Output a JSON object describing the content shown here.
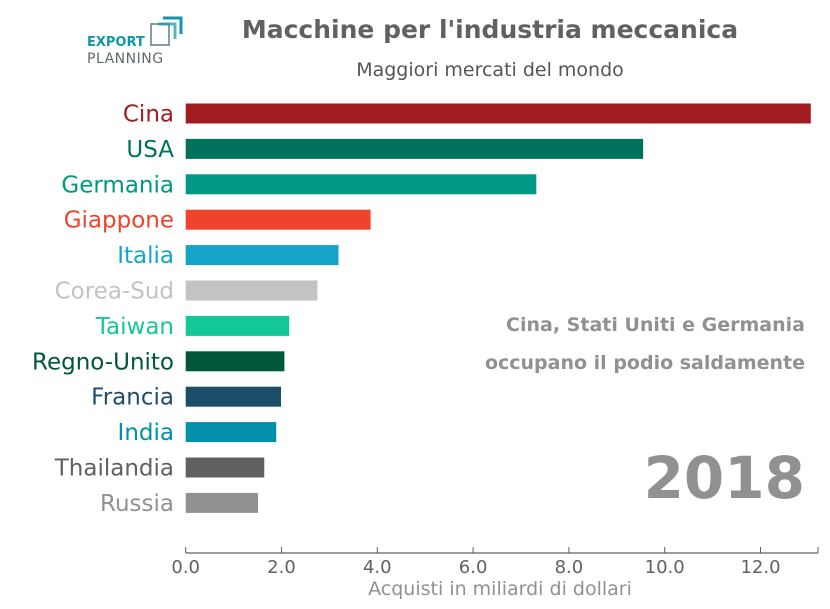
{
  "logo": {
    "line1": "EXPORT",
    "line2": "PLANNING"
  },
  "chart_data": {
    "type": "bar",
    "orientation": "horizontal",
    "title": "Macchine per l'industria meccanica",
    "subtitle": "Maggiori mercati del mondo",
    "xlabel": "Acquisti in miliardi di dollari",
    "ylabel": "",
    "xlim": [
      0,
      13.2
    ],
    "xticks": [
      "0.0",
      "2.0",
      "4.0",
      "6.0",
      "8.0",
      "10.0",
      "12.0"
    ],
    "grid": false,
    "categories": [
      "Cina",
      "USA",
      "Germania",
      "Giappone",
      "Italia",
      "Corea-Sud",
      "Taiwan",
      "Regno-Unito",
      "Francia",
      "India",
      "Thailandia",
      "Russia"
    ],
    "values": [
      13.05,
      9.55,
      7.32,
      3.86,
      3.19,
      2.75,
      2.16,
      2.06,
      1.99,
      1.89,
      1.64,
      1.51
    ],
    "colors": [
      "#a01c1f",
      "#00725b",
      "#009883",
      "#ef432d",
      "#12a5c9",
      "#c3c3c5",
      "#14c796",
      "#00563a",
      "#1d4e69",
      "#0090a9",
      "#616163",
      "#919193"
    ],
    "annotations": [
      "Cina, Stati Uniti e Germania",
      "occupano il podio saldamente",
      "2018"
    ]
  }
}
